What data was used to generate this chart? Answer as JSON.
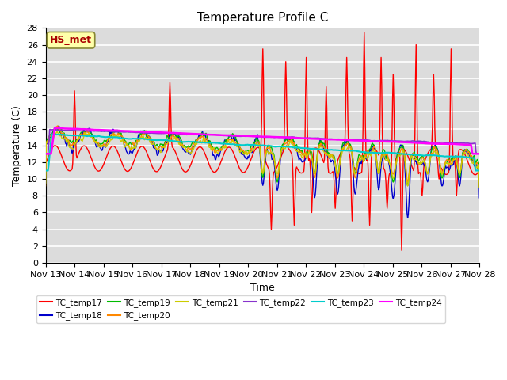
{
  "title": "Temperature Profile C",
  "xlabel": "Time",
  "ylabel": "Temperature (C)",
  "ylim": [
    0,
    28
  ],
  "yticks": [
    0,
    2,
    4,
    6,
    8,
    10,
    12,
    14,
    16,
    18,
    20,
    22,
    24,
    26,
    28
  ],
  "xtick_labels": [
    "Nov 13",
    "Nov 14",
    "Nov 15",
    "Nov 16",
    "Nov 17",
    "Nov 18",
    "Nov 19",
    "Nov 20",
    "Nov 21",
    "Nov 22",
    "Nov 23",
    "Nov 24",
    "Nov 25",
    "Nov 26",
    "Nov 27",
    "Nov 28"
  ],
  "series_names": [
    "TC_temp17",
    "TC_temp18",
    "TC_temp19",
    "TC_temp20",
    "TC_temp21",
    "TC_temp22",
    "TC_temp23",
    "TC_temp24"
  ],
  "series_colors": [
    "#ff0000",
    "#0000cc",
    "#00bb00",
    "#ff8800",
    "#cccc00",
    "#8833cc",
    "#00cccc",
    "#ff00ff"
  ],
  "annotation_text": "HS_met",
  "annotation_color": "#aa0000",
  "annotation_bg": "#ffffaa",
  "background_color": "#dcdcdc",
  "grid_color": "#ffffff",
  "title_fontsize": 11,
  "axis_fontsize": 9,
  "tick_fontsize": 8
}
